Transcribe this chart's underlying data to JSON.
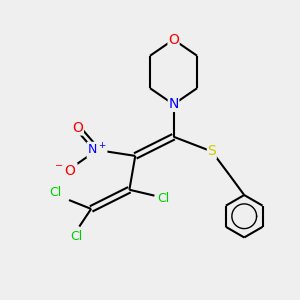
{
  "bg_color": "#efefef",
  "bond_color": "#000000",
  "bond_width": 1.5,
  "atom_colors": {
    "O": "#ff0000",
    "N": "#0000ff",
    "S": "#cccc00",
    "Cl": "#00cc00",
    "C": "#000000"
  },
  "font_size": 9
}
